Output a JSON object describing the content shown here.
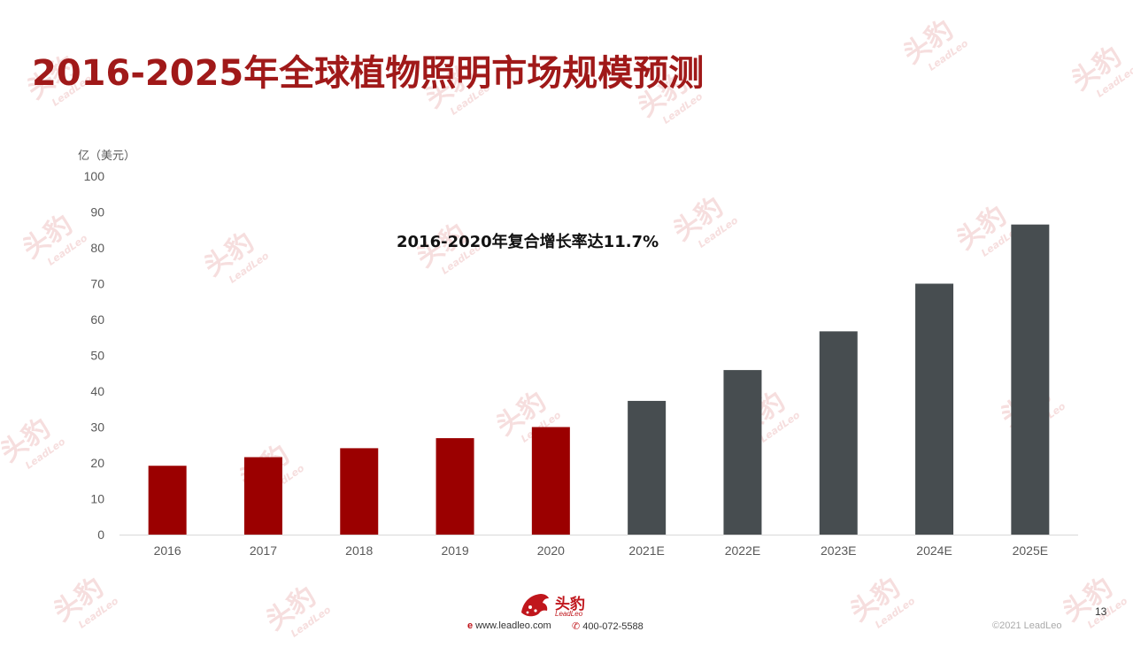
{
  "title": "2016-2025年全球植物照明市场规模预测",
  "unit_label": "亿（美元）",
  "annotation": "2016-2020年复合增长率达11.7%",
  "watermark": {
    "cn": "头豹",
    "en": "LeadLeo"
  },
  "colors": {
    "historical": "#9b0000",
    "forecast": "#474d50",
    "title": "#a01919",
    "axis": "#d9d9d9",
    "tick_text": "#595959"
  },
  "chart_data": {
    "type": "bar",
    "title": "",
    "xlabel": "",
    "ylabel": "亿（美元）",
    "ylim": [
      0,
      100
    ],
    "yticks": [
      0,
      10,
      20,
      30,
      40,
      50,
      60,
      70,
      80,
      90,
      100
    ],
    "categories": [
      "2016",
      "2017",
      "2018",
      "2019",
      "2020",
      "2021E",
      "2022E",
      "2023E",
      "2024E",
      "2025E"
    ],
    "values": [
      19.2,
      21.6,
      24.1,
      26.9,
      30.0,
      37.3,
      45.9,
      56.7,
      70.0,
      86.5
    ],
    "bar_colors": [
      "#9b0000",
      "#9b0000",
      "#9b0000",
      "#9b0000",
      "#9b0000",
      "#474d50",
      "#474d50",
      "#474d50",
      "#474d50",
      "#474d50"
    ],
    "grid": false,
    "legend": "none"
  },
  "footer": {
    "logo_text": "头豹",
    "logo_sub": "LeadLeo",
    "website": "www.leadleo.com",
    "phone": "400-072-5588",
    "page_number": "13",
    "copyright": "©2021 LeadLeo"
  }
}
